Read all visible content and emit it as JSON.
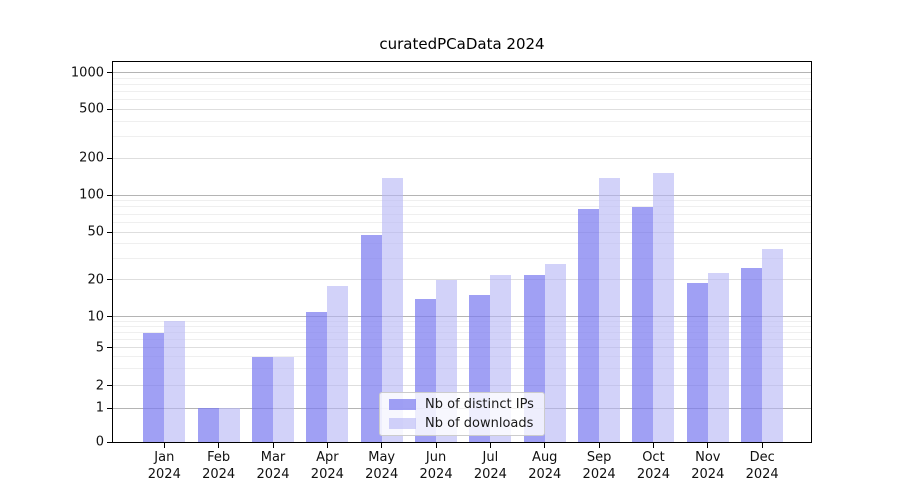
{
  "chart_data": {
    "type": "bar",
    "title": "curatedPCaData 2024",
    "categories": [
      "Jan 2024",
      "Feb 2024",
      "Mar 2024",
      "Apr 2024",
      "May 2024",
      "Jun 2024",
      "Jul 2024",
      "Aug 2024",
      "Sep 2024",
      "Oct 2024",
      "Nov 2024",
      "Dec 2024"
    ],
    "series": [
      {
        "name": "Nb of distinct IPs",
        "color": "#7c7cf0",
        "alpha": 0.72,
        "values": [
          7,
          1,
          4,
          11,
          47,
          14,
          15,
          22,
          77,
          80,
          19,
          25
        ]
      },
      {
        "name": "Nb of downloads",
        "color": "#b7b7f5",
        "alpha": 0.62,
        "values": [
          9,
          1,
          4,
          18,
          138,
          20,
          22,
          27,
          139,
          152,
          23,
          36
        ]
      }
    ],
    "yticks": [
      0,
      1,
      2,
      5,
      10,
      20,
      50,
      100,
      200,
      500,
      1000
    ],
    "ylim": [
      0,
      1150
    ],
    "yscale": "log-like (compressed below 5, linear 0-1)",
    "xlabel": "",
    "ylabel": "",
    "grid": "horizontal log major+minor",
    "legend_position": "inside bottom-center",
    "gridline_colors": {
      "major": "#b4b4b4",
      "mid": "#dedede",
      "minor": "#efefef"
    }
  }
}
